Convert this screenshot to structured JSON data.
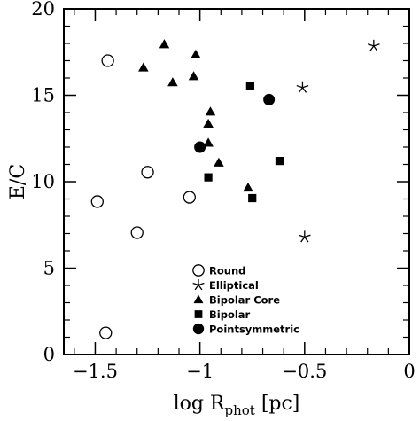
{
  "chart_data": {
    "type": "scatter",
    "title": "",
    "xlabel": "log R",
    "xlabel_subscript": "phot",
    "xlabel_suffix": " [pc]",
    "ylabel": "E/C",
    "xlim": [
      -1.65,
      0
    ],
    "ylim": [
      0,
      20
    ],
    "x_ticks": [
      -1.5,
      -1,
      -0.5,
      0
    ],
    "x_tick_labels": [
      "−1.5",
      "−1",
      "−0.5",
      "0"
    ],
    "y_ticks": [
      0,
      5,
      10,
      15,
      20
    ],
    "y_tick_labels": [
      "0",
      "5",
      "10",
      "15",
      "20"
    ],
    "grid": false,
    "legend_position": "bottom-center",
    "series": [
      {
        "name": "Round",
        "marker": "open-circle",
        "x": [
          -1.44,
          -1.25,
          -1.49,
          -1.3,
          -1.05,
          -1.45
        ],
        "y": [
          17.0,
          10.55,
          8.85,
          7.05,
          9.1,
          1.25
        ]
      },
      {
        "name": "Elliptical",
        "marker": "star",
        "x": [
          -0.17,
          -0.51,
          -0.5
        ],
        "y": [
          17.85,
          15.45,
          6.8
        ]
      },
      {
        "name": "Bipolar Core",
        "marker": "filled-triangle",
        "x": [
          -1.17,
          -1.27,
          -1.13,
          -1.02,
          -1.03,
          -0.95,
          -0.96,
          -0.96,
          -0.91,
          -0.77
        ],
        "y": [
          17.95,
          16.6,
          15.75,
          17.35,
          16.1,
          14.05,
          13.35,
          12.25,
          11.1,
          9.65
        ]
      },
      {
        "name": "Bipolar",
        "marker": "filled-square",
        "x": [
          -0.76,
          -0.62,
          -0.96,
          -0.75
        ],
        "y": [
          15.55,
          11.2,
          10.25,
          9.05
        ]
      },
      {
        "name": "Pointsymmetric",
        "marker": "filled-circle",
        "x": [
          -0.67,
          -1.0
        ],
        "y": [
          14.75,
          12.0
        ]
      }
    ]
  }
}
